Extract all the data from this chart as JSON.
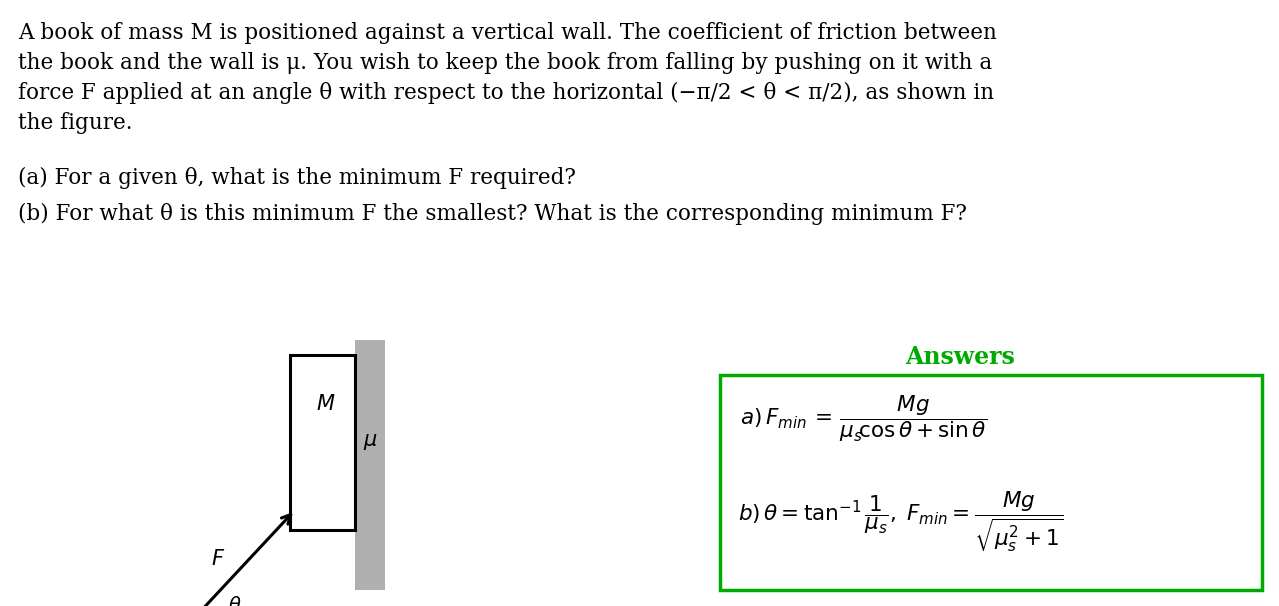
{
  "bg_color": "#ffffff",
  "text_color": "#000000",
  "line1": "A book of mass M is positioned against a vertical wall. The coefficient of friction between",
  "line2": "the book and the wall is μ. You wish to keep the book from falling by pushing on it with a",
  "line3": "force F applied at an angle θ with respect to the horizontal (−π/2 < θ < π/2), as shown in",
  "line4": "the figure.",
  "question_a": "(a) For a given θ, what is the minimum F required?",
  "question_b": "(b) For what θ is this minimum F the smallest? What is the corresponding minimum F?",
  "answers_title": "Answers",
  "answers_color": "#00aa00",
  "box_color": "#00aa00"
}
